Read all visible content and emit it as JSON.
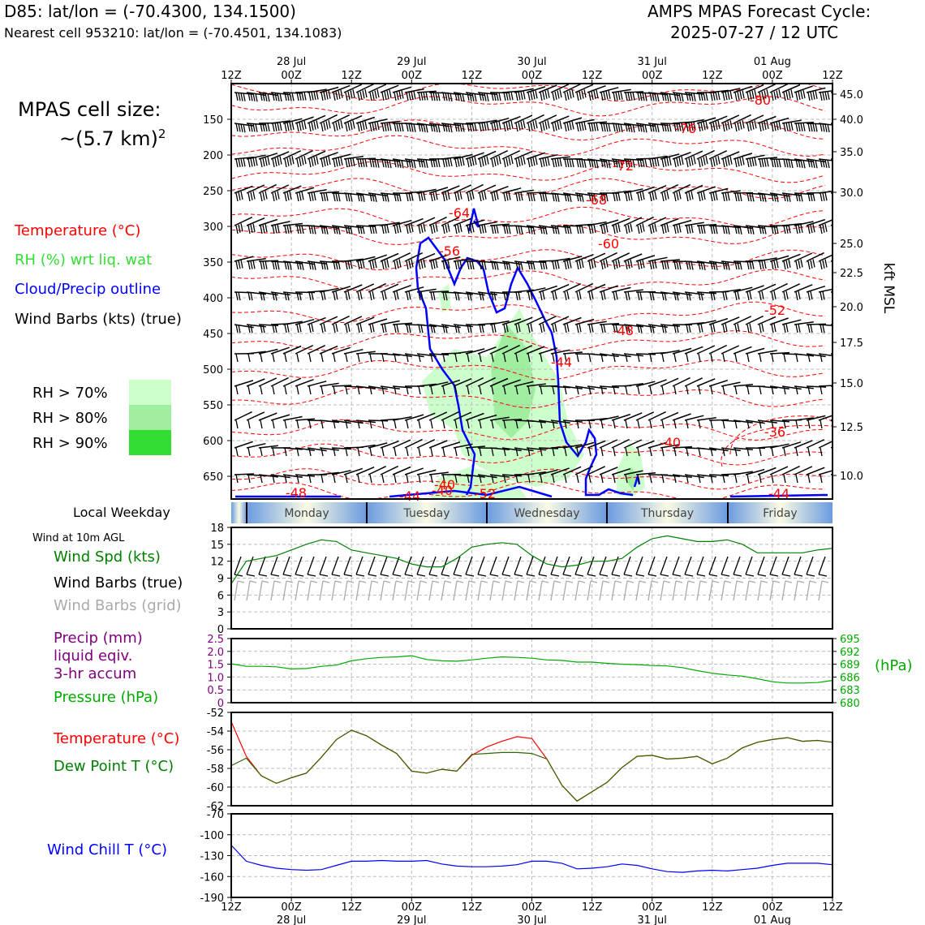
{
  "header": {
    "title": "D85: lat/lon = (-70.4300, 134.1500)",
    "subtitle": "Nearest cell 953210: lat/lon = (-70.4501, 134.1083)",
    "cycle_line1": "AMPS MPAS Forecast Cycle:",
    "cycle_line2": "2025-07-27 / 12 UTC"
  },
  "sidebar": {
    "cell_size_line1": "MPAS cell size:",
    "cell_size_line2": "~(5.7 km)",
    "cell_size_exp": "2",
    "legend": [
      {
        "text": "Temperature (°C)",
        "color": "#ff0000"
      },
      {
        "text": "RH (%) wrt liq. wat",
        "color": "#33dd33"
      },
      {
        "text": "Cloud/Precip outline",
        "color": "#0000ff"
      },
      {
        "text": "Wind Barbs (kts) (true)",
        "color": "#000000"
      }
    ],
    "rh_legend": [
      {
        "text": "RH > 70%",
        "color": "#ccffcc"
      },
      {
        "text": "RH > 80%",
        "color": "#a0eea0"
      },
      {
        "text": "RH > 90%",
        "color": "#33dd33"
      }
    ],
    "weekday_label": "Local Weekday",
    "wind10m_label": "Wind at 10m AGL",
    "wind_legend": [
      {
        "text": "Wind Spd (kts)",
        "color": "#008000"
      },
      {
        "text": "Wind Barbs (true)",
        "color": "#000000"
      },
      {
        "text": "Wind Barbs (grid)",
        "color": "#aaaaaa"
      }
    ],
    "precip_legend": [
      {
        "text": "Precip (mm)",
        "color": "#800080"
      },
      {
        "text": "liquid eqiv.",
        "color": "#800080"
      },
      {
        "text": "3-hr accum",
        "color": "#800080"
      },
      {
        "text": "Pressure (hPa)",
        "color": "#00aa00"
      }
    ],
    "temp_legend": [
      {
        "text": "Temperature (°C)",
        "color": "#ff0000"
      },
      {
        "text": "Dew Point T (°C)",
        "color": "#008000"
      }
    ],
    "windchill_legend": {
      "text": "Wind Chill T (°C)",
      "color": "#0000ff"
    }
  },
  "chart_data": [
    {
      "type": "heatmap",
      "title": "Time-height cross section",
      "x_ticks_top": [
        {
          "time": "12Z",
          "date": ""
        },
        {
          "time": "00Z",
          "date": "28 Jul"
        },
        {
          "time": "12Z",
          "date": ""
        },
        {
          "time": "00Z",
          "date": "29 Jul"
        },
        {
          "time": "12Z",
          "date": ""
        },
        {
          "time": "00Z",
          "date": "30 Jul"
        },
        {
          "time": "12Z",
          "date": ""
        },
        {
          "time": "00Z",
          "date": "31 Jul"
        },
        {
          "time": "12Z",
          "date": ""
        },
        {
          "time": "00Z",
          "date": "01 Aug"
        },
        {
          "time": "12Z",
          "date": ""
        }
      ],
      "y_left_ticks_hpa": [
        "150",
        "200",
        "250",
        "300",
        "350",
        "400",
        "450",
        "500",
        "550",
        "600",
        "650"
      ],
      "y_right_ticks_kft": [
        "45.0",
        "40.0",
        "35.0",
        "30.0",
        "25.0",
        "22.5",
        "20.0",
        "17.5",
        "15.0",
        "12.5",
        "10.0"
      ],
      "ylabel_right": "kft MSL",
      "temperature_contour_labels": [
        "-80",
        "-76",
        "-72",
        "-68",
        "-64",
        "-60",
        "-56",
        "-52",
        "-48",
        "-44",
        "-40",
        "-36",
        "-40",
        "-44",
        "-48",
        "-52",
        "-40",
        "-44"
      ],
      "weekdays": [
        "Monday",
        "Tuesday",
        "Wednesday",
        "Thursday",
        "Friday"
      ]
    },
    {
      "type": "line",
      "title": "Wind at 10m AGL",
      "ylim": [
        0,
        18
      ],
      "y_ticks": [
        "18",
        "15",
        "12",
        "9",
        "6",
        "3",
        "0"
      ],
      "series": [
        {
          "name": "Wind Spd (kts)",
          "color": "#008000",
          "x_hours": [
            0,
            3,
            6,
            9,
            12,
            15,
            18,
            21,
            24,
            27,
            30,
            33,
            36,
            39,
            42,
            45,
            48,
            51,
            54,
            57,
            60,
            63,
            66,
            69,
            72,
            75,
            78,
            81,
            84,
            87,
            90,
            93,
            96,
            99,
            102,
            105,
            108,
            111,
            114,
            117,
            120
          ],
          "values": [
            8,
            12,
            12.5,
            13,
            14,
            15,
            15.8,
            15.5,
            14,
            13.5,
            13,
            12.5,
            11.5,
            11,
            11,
            12.5,
            14.5,
            15,
            15.3,
            15,
            13,
            11.5,
            11,
            11.3,
            12,
            12,
            12.5,
            14.5,
            16,
            16.5,
            16,
            15.5,
            15.5,
            15.8,
            15,
            13.5,
            13.5,
            13.5,
            13.5,
            14,
            14.3
          ]
        }
      ]
    },
    {
      "type": "line",
      "title": "Precip / Pressure",
      "ylim": [
        0,
        2.5
      ],
      "y_ticks": [
        "2.5",
        "2.0",
        "1.5",
        "1.0",
        "0.5",
        "0"
      ],
      "y2lim": [
        680,
        695
      ],
      "y2_ticks": [
        "695",
        "692",
        "689",
        "686",
        "683",
        "680"
      ],
      "y2label": "(hPa)",
      "series": [
        {
          "name": "Pressure (hPa)",
          "color": "#00aa00",
          "x_hours": [
            0,
            3,
            6,
            9,
            12,
            15,
            18,
            21,
            24,
            27,
            30,
            33,
            36,
            39,
            42,
            45,
            48,
            51,
            54,
            57,
            60,
            63,
            66,
            69,
            72,
            75,
            78,
            81,
            84,
            87,
            90,
            93,
            96,
            99,
            102,
            105,
            108,
            111,
            114,
            117,
            120
          ],
          "values": [
            689.1,
            688.5,
            688.5,
            688.4,
            687.9,
            688.0,
            688.5,
            688.8,
            689.8,
            690.3,
            690.6,
            690.7,
            691.0,
            690.1,
            689.8,
            689.7,
            690.0,
            690.4,
            690.7,
            690.6,
            690.4,
            690.0,
            689.9,
            689.5,
            689.5,
            689.2,
            689.0,
            688.9,
            688.7,
            688.6,
            688.2,
            687.5,
            686.9,
            686.5,
            686.2,
            685.6,
            684.9,
            684.6,
            684.6,
            684.7,
            685.2
          ]
        }
      ]
    },
    {
      "type": "line",
      "title": "Temperature / Dew Point",
      "ylim": [
        -62,
        -52
      ],
      "y_ticks": [
        "-52",
        "-54",
        "-56",
        "-58",
        "-60",
        "-62"
      ],
      "series": [
        {
          "name": "Temperature (°C)",
          "color": "#ff0000",
          "x_hours": [
            0,
            3,
            6,
            9,
            12,
            15,
            18,
            21,
            24,
            27,
            30,
            33,
            36,
            39,
            42,
            45,
            48,
            51,
            54,
            57,
            60,
            63,
            66,
            69,
            72,
            75,
            78,
            81,
            84,
            87,
            90,
            93,
            96,
            99,
            102,
            105,
            108,
            111,
            114,
            117,
            120
          ],
          "values": [
            -53.0,
            -56.7,
            -58.8,
            -59.6,
            -59.0,
            -58.5,
            -56.8,
            -54.9,
            -53.9,
            -54.5,
            -55.5,
            -56.4,
            -58.3,
            -58.5,
            -58.1,
            -58.3,
            -56.6,
            -55.7,
            -55.1,
            -54.6,
            -54.8,
            -57.0,
            -59.8,
            -61.5,
            -60.5,
            -59.5,
            -57.9,
            -56.7,
            -56.6,
            -57.0,
            -56.9,
            -56.7,
            -57.5,
            -56.9,
            -55.8,
            -55.2,
            -54.9,
            -54.7,
            -55.1,
            -55.0,
            -55.2
          ]
        },
        {
          "name": "Dew Point T (°C)",
          "color": "#336600",
          "x_hours": [
            0,
            3,
            6,
            9,
            12,
            15,
            18,
            21,
            24,
            27,
            30,
            33,
            36,
            39,
            42,
            45,
            48,
            51,
            54,
            57,
            60,
            63,
            66,
            69,
            72,
            75,
            78,
            81,
            84,
            87,
            90,
            93,
            96,
            99,
            102,
            105,
            108,
            111,
            114,
            117,
            120
          ],
          "values": [
            -57.7,
            -56.9,
            -58.8,
            -59.6,
            -59.0,
            -58.5,
            -56.8,
            -54.9,
            -53.9,
            -54.5,
            -55.5,
            -56.4,
            -58.3,
            -58.5,
            -58.1,
            -58.3,
            -56.5,
            -56.4,
            -56.3,
            -56.3,
            -56.4,
            -57.0,
            -59.8,
            -61.5,
            -60.5,
            -59.5,
            -57.9,
            -56.7,
            -56.6,
            -57.0,
            -56.9,
            -56.7,
            -57.5,
            -56.9,
            -55.8,
            -55.2,
            -54.9,
            -54.7,
            -55.1,
            -55.0,
            -55.2
          ]
        }
      ]
    },
    {
      "type": "line",
      "title": "Wind Chill",
      "ylim": [
        -190,
        -70
      ],
      "y_ticks": [
        "-70",
        "-100",
        "-130",
        "-160",
        "-190"
      ],
      "x_ticks_bottom": [
        {
          "time": "12Z",
          "date": ""
        },
        {
          "time": "00Z",
          "date": "28 Jul"
        },
        {
          "time": "12Z",
          "date": ""
        },
        {
          "time": "00Z",
          "date": "29 Jul"
        },
        {
          "time": "12Z",
          "date": ""
        },
        {
          "time": "00Z",
          "date": "30 Jul"
        },
        {
          "time": "12Z",
          "date": ""
        },
        {
          "time": "00Z",
          "date": "31 Jul"
        },
        {
          "time": "12Z",
          "date": ""
        },
        {
          "time": "00Z",
          "date": "01 Aug"
        },
        {
          "time": "12Z",
          "date": ""
        }
      ],
      "series": [
        {
          "name": "Wind Chill T (°C)",
          "color": "#0000ff",
          "x_hours": [
            0,
            3,
            6,
            9,
            12,
            15,
            18,
            21,
            24,
            27,
            30,
            33,
            36,
            39,
            42,
            45,
            48,
            51,
            54,
            57,
            60,
            63,
            66,
            69,
            72,
            75,
            78,
            81,
            84,
            87,
            90,
            93,
            96,
            99,
            102,
            105,
            108,
            111,
            114,
            117,
            120
          ],
          "values": [
            -115,
            -138,
            -144,
            -148,
            -150,
            -151,
            -150,
            -144,
            -138,
            -138,
            -137,
            -138,
            -138,
            -137,
            -142,
            -145,
            -146,
            -146,
            -145,
            -143,
            -138,
            -138,
            -141,
            -149,
            -148,
            -146,
            -142,
            -144,
            -149,
            -153,
            -154,
            -152,
            -151,
            -152,
            -150,
            -148,
            -144,
            -141,
            -141,
            -141,
            -143
          ]
        }
      ]
    }
  ]
}
